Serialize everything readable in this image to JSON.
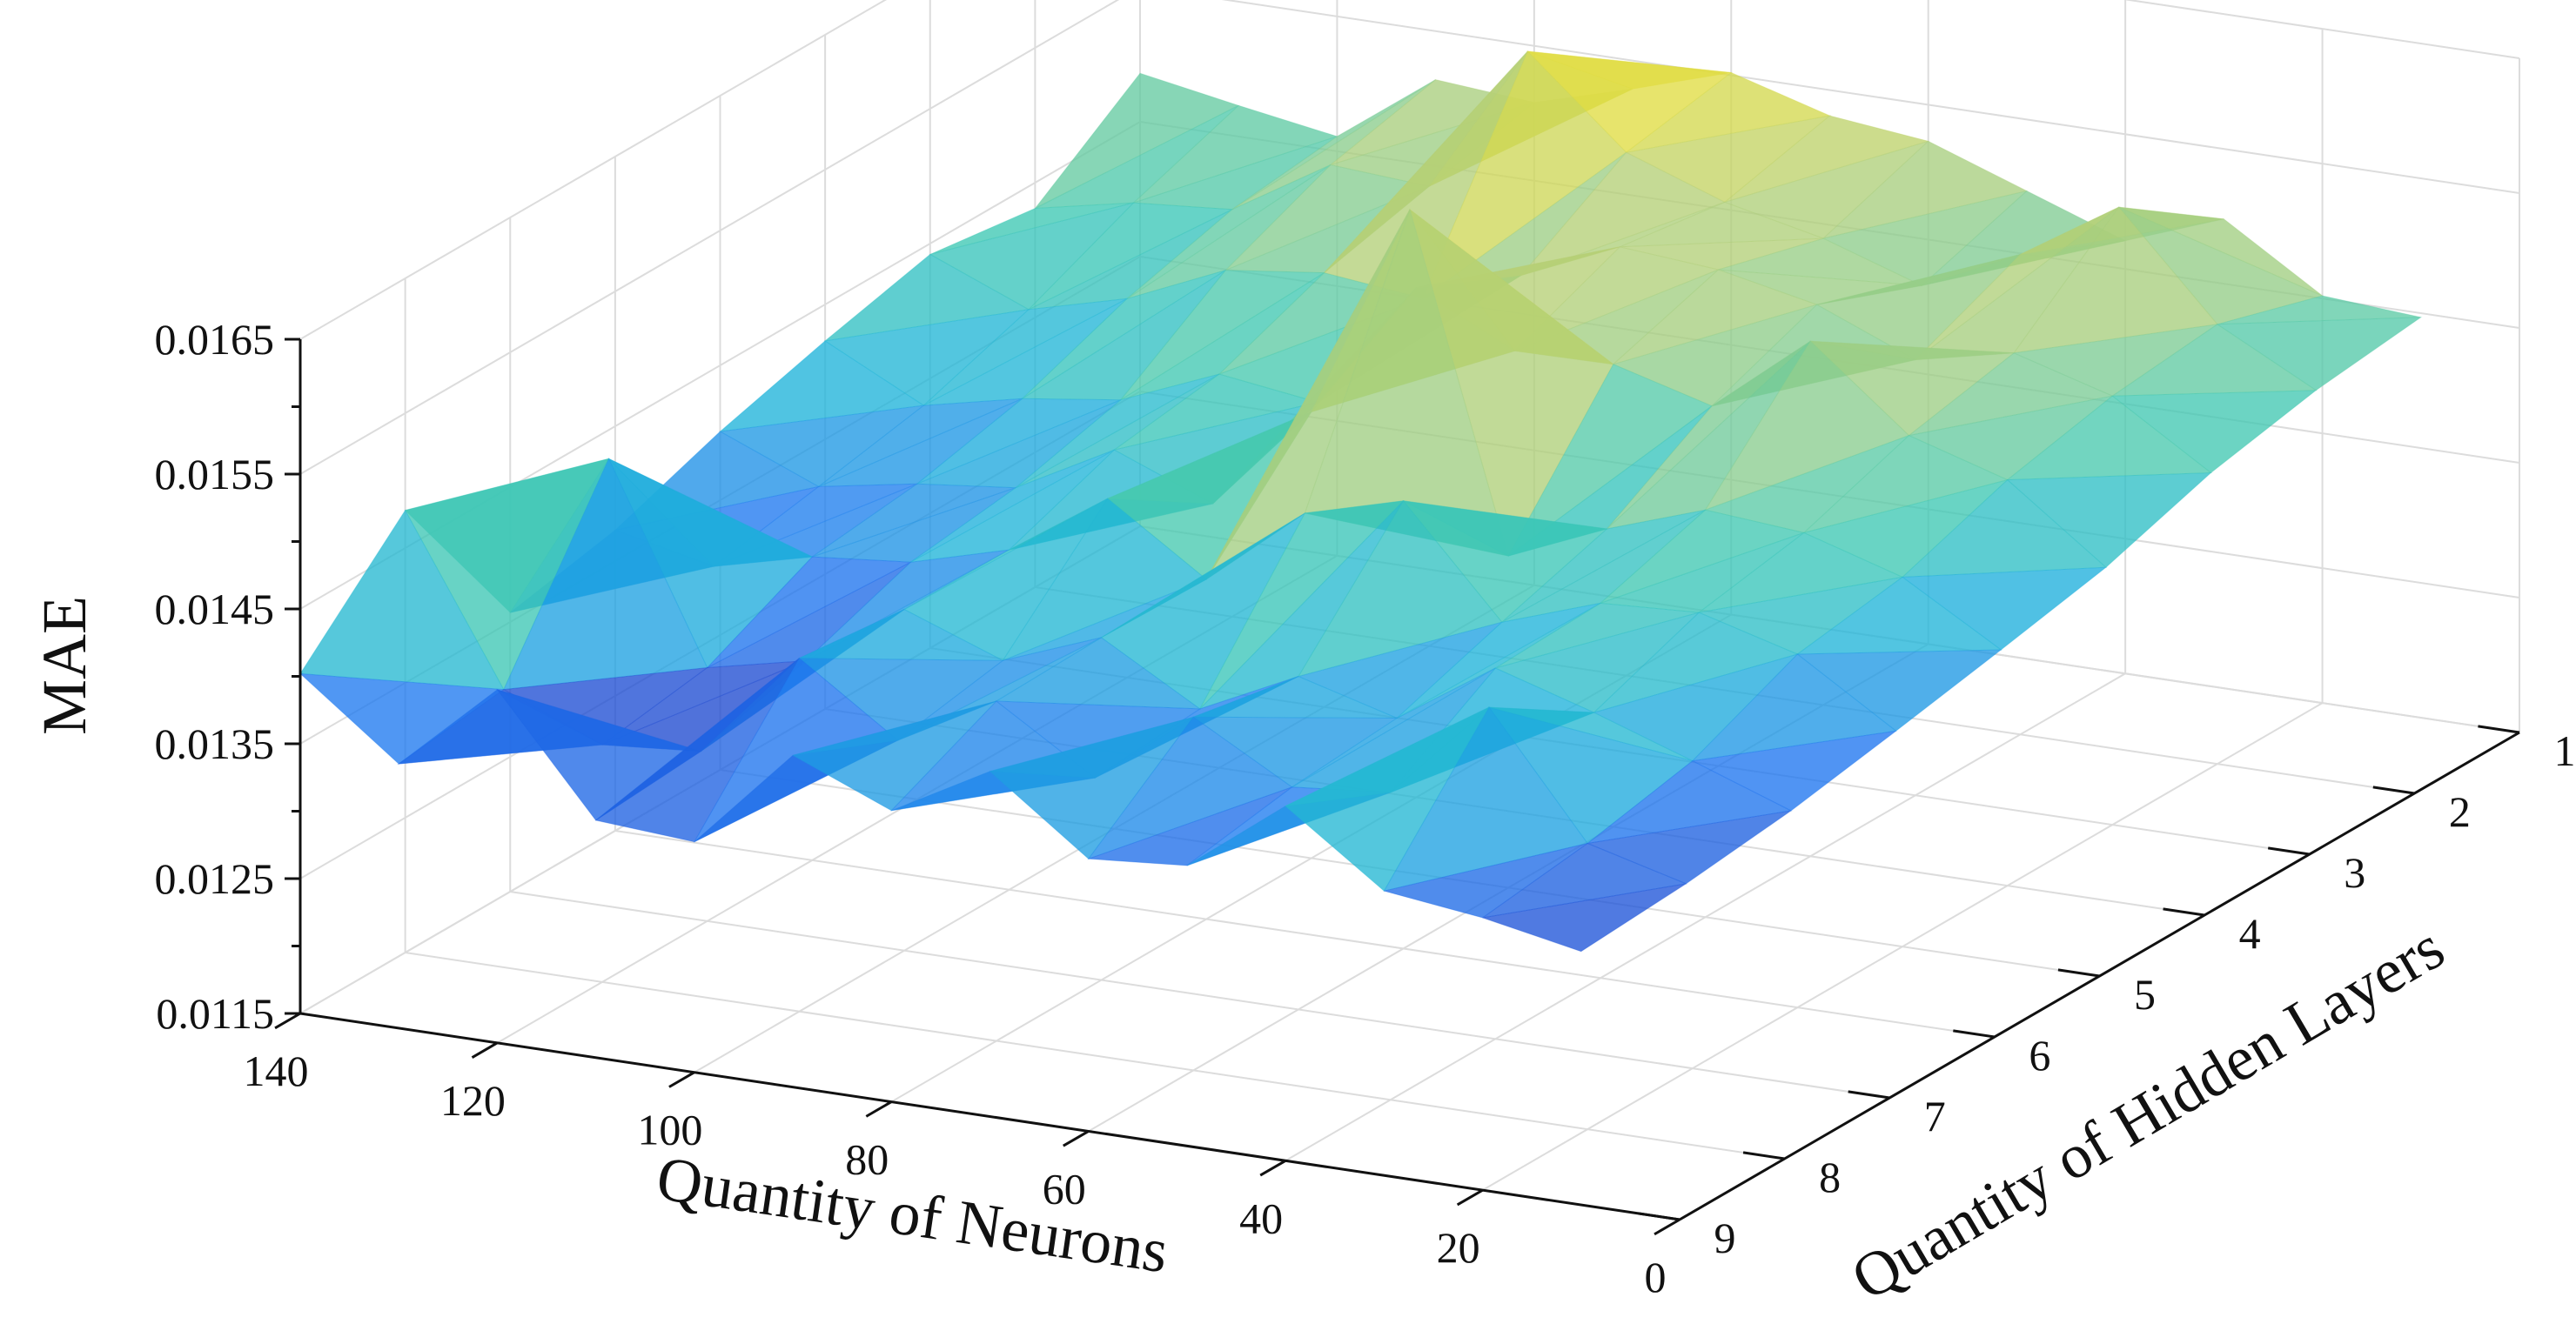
{
  "chart_data": {
    "type": "surface3d",
    "zlabel": "MAE",
    "xlabel": "Quantity of Neurons",
    "ylabel": "Quantity of Hidden Layers",
    "x_ticks": [
      0,
      20,
      40,
      60,
      80,
      100,
      120,
      140
    ],
    "y_ticks": [
      1,
      2,
      3,
      4,
      5,
      6,
      7,
      8,
      9
    ],
    "z_ticks": [
      "0.0115",
      "0.0125",
      "0.0135",
      "0.0145",
      "0.0155",
      "0.0165"
    ],
    "xlim": [
      0,
      140
    ],
    "ylim": [
      1,
      9
    ],
    "zlim": [
      0.0115,
      0.0165
    ],
    "grid": true,
    "colormap": [
      "#1f3ec8",
      "#1f78f0",
      "#1fb4da",
      "#3ec8b4",
      "#7ccc96",
      "#b4cf78",
      "#e0dc42"
    ],
    "neurons": [
      10,
      20,
      30,
      40,
      50,
      60,
      70,
      80,
      90,
      100,
      110,
      120,
      130,
      140
    ],
    "layers": [
      1,
      2,
      3,
      4,
      5,
      6,
      7,
      8,
      9
    ],
    "mae": [
      [
        0.01447,
        0.01452,
        0.01498,
        0.01471,
        0.01497,
        0.01523,
        0.01531,
        0.01552,
        0.01529,
        0.01508,
        0.01514,
        0.01461,
        0.01473,
        0.01486
      ],
      [
        0.01438,
        0.01476,
        0.01552,
        0.01506,
        0.01472,
        0.01496,
        0.01512,
        0.01538,
        0.01602,
        0.01491,
        0.01496,
        0.01452,
        0.01446,
        0.01431
      ],
      [
        0.01422,
        0.01468,
        0.01489,
        0.01473,
        0.01503,
        0.01518,
        0.01524,
        0.01492,
        0.01464,
        0.01472,
        0.01463,
        0.01431,
        0.01412,
        0.01442
      ],
      [
        0.01397,
        0.01451,
        0.01473,
        0.01532,
        0.01473,
        0.01493,
        0.01492,
        0.01528,
        0.01432,
        0.01442,
        0.01412,
        0.01402,
        0.01386,
        0.01423
      ],
      [
        0.01381,
        0.01424,
        0.01446,
        0.01452,
        0.01427,
        0.01396,
        0.01642,
        0.01481,
        0.01402,
        0.01431,
        0.01392,
        0.01384,
        0.01371,
        0.01401
      ],
      [
        0.01366,
        0.01412,
        0.01432,
        0.01428,
        0.01403,
        0.01482,
        0.01462,
        0.01402,
        0.01451,
        0.01402,
        0.01382,
        0.01375,
        0.01357,
        0.01373
      ],
      [
        0.01352,
        0.01378,
        0.01403,
        0.01425,
        0.01377,
        0.01397,
        0.01362,
        0.01404,
        0.01376,
        0.01403,
        0.01354,
        0.01338,
        0.01482,
        0.01357
      ],
      [
        0.01343,
        0.01362,
        0.01452,
        0.01378,
        0.01371,
        0.01412,
        0.01356,
        0.01402,
        0.01362,
        0.01412,
        0.01332,
        0.01326,
        0.01356,
        0.01478
      ],
      [
        0.01338,
        0.01352,
        0.01361,
        0.01413,
        0.01358,
        0.01352,
        0.01406,
        0.01366,
        0.01396,
        0.01321,
        0.01326,
        0.01412,
        0.01346,
        0.01402
      ]
    ]
  }
}
